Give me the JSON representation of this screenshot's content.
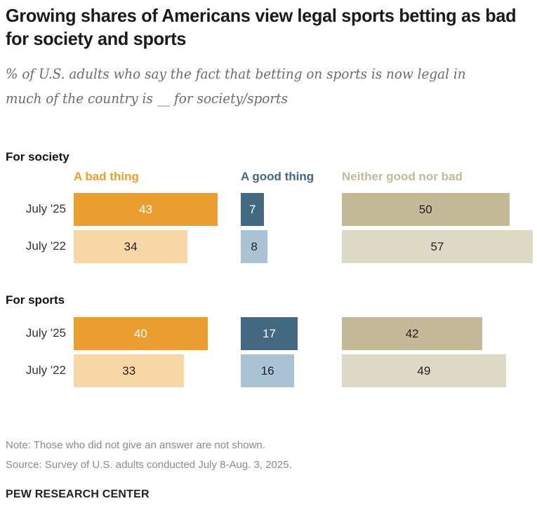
{
  "title": "Growing shares of Americans view legal sports betting as bad for society and sports",
  "subtitle": "% of U.S. adults who say the fact that betting on sports is now legal in much of the country is __ for society/sports",
  "colors": {
    "bad_2025": "#EA9E2F",
    "bad_2022": "#F8D7A7",
    "good_2025": "#436880",
    "good_2022": "#A9C3D5",
    "neither_2025": "#C3B998",
    "neither_2022": "#DDD9C4",
    "bad_header": "#EA9E2F",
    "good_header": "#436880",
    "neither_header": "#C3B998"
  },
  "chart_data": {
    "type": "bar",
    "orientation": "horizontal",
    "title": "Growing shares of Americans view legal sports betting as bad for society and sports",
    "subtitle": "% of U.S. adults who say the fact that betting on sports is now legal in much of the country is __ for society/sports",
    "series_names": [
      "A bad thing",
      "A good thing",
      "Neither good nor bad"
    ],
    "categories": [
      "July '25",
      "July '22"
    ],
    "groups": [
      {
        "name": "For society",
        "series": [
          {
            "name": "A bad thing",
            "values": [
              43,
              34
            ]
          },
          {
            "name": "A good thing",
            "values": [
              7,
              8
            ]
          },
          {
            "name": "Neither good nor bad",
            "values": [
              50,
              57
            ]
          }
        ]
      },
      {
        "name": "For sports",
        "series": [
          {
            "name": "A bad thing",
            "values": [
              40,
              33
            ]
          },
          {
            "name": "A good thing",
            "values": [
              17,
              16
            ]
          },
          {
            "name": "Neither good nor bad",
            "values": [
              42,
              49
            ]
          }
        ]
      }
    ],
    "xlim": [
      0,
      100
    ],
    "grid": false,
    "legend": "column headers at top"
  },
  "notes": {
    "note": "Note: Those who did not give an answer are not shown.",
    "source": "Source: Survey of U.S. adults conducted July 8-Aug. 3, 2025."
  },
  "brand": "PEW RESEARCH CENTER"
}
